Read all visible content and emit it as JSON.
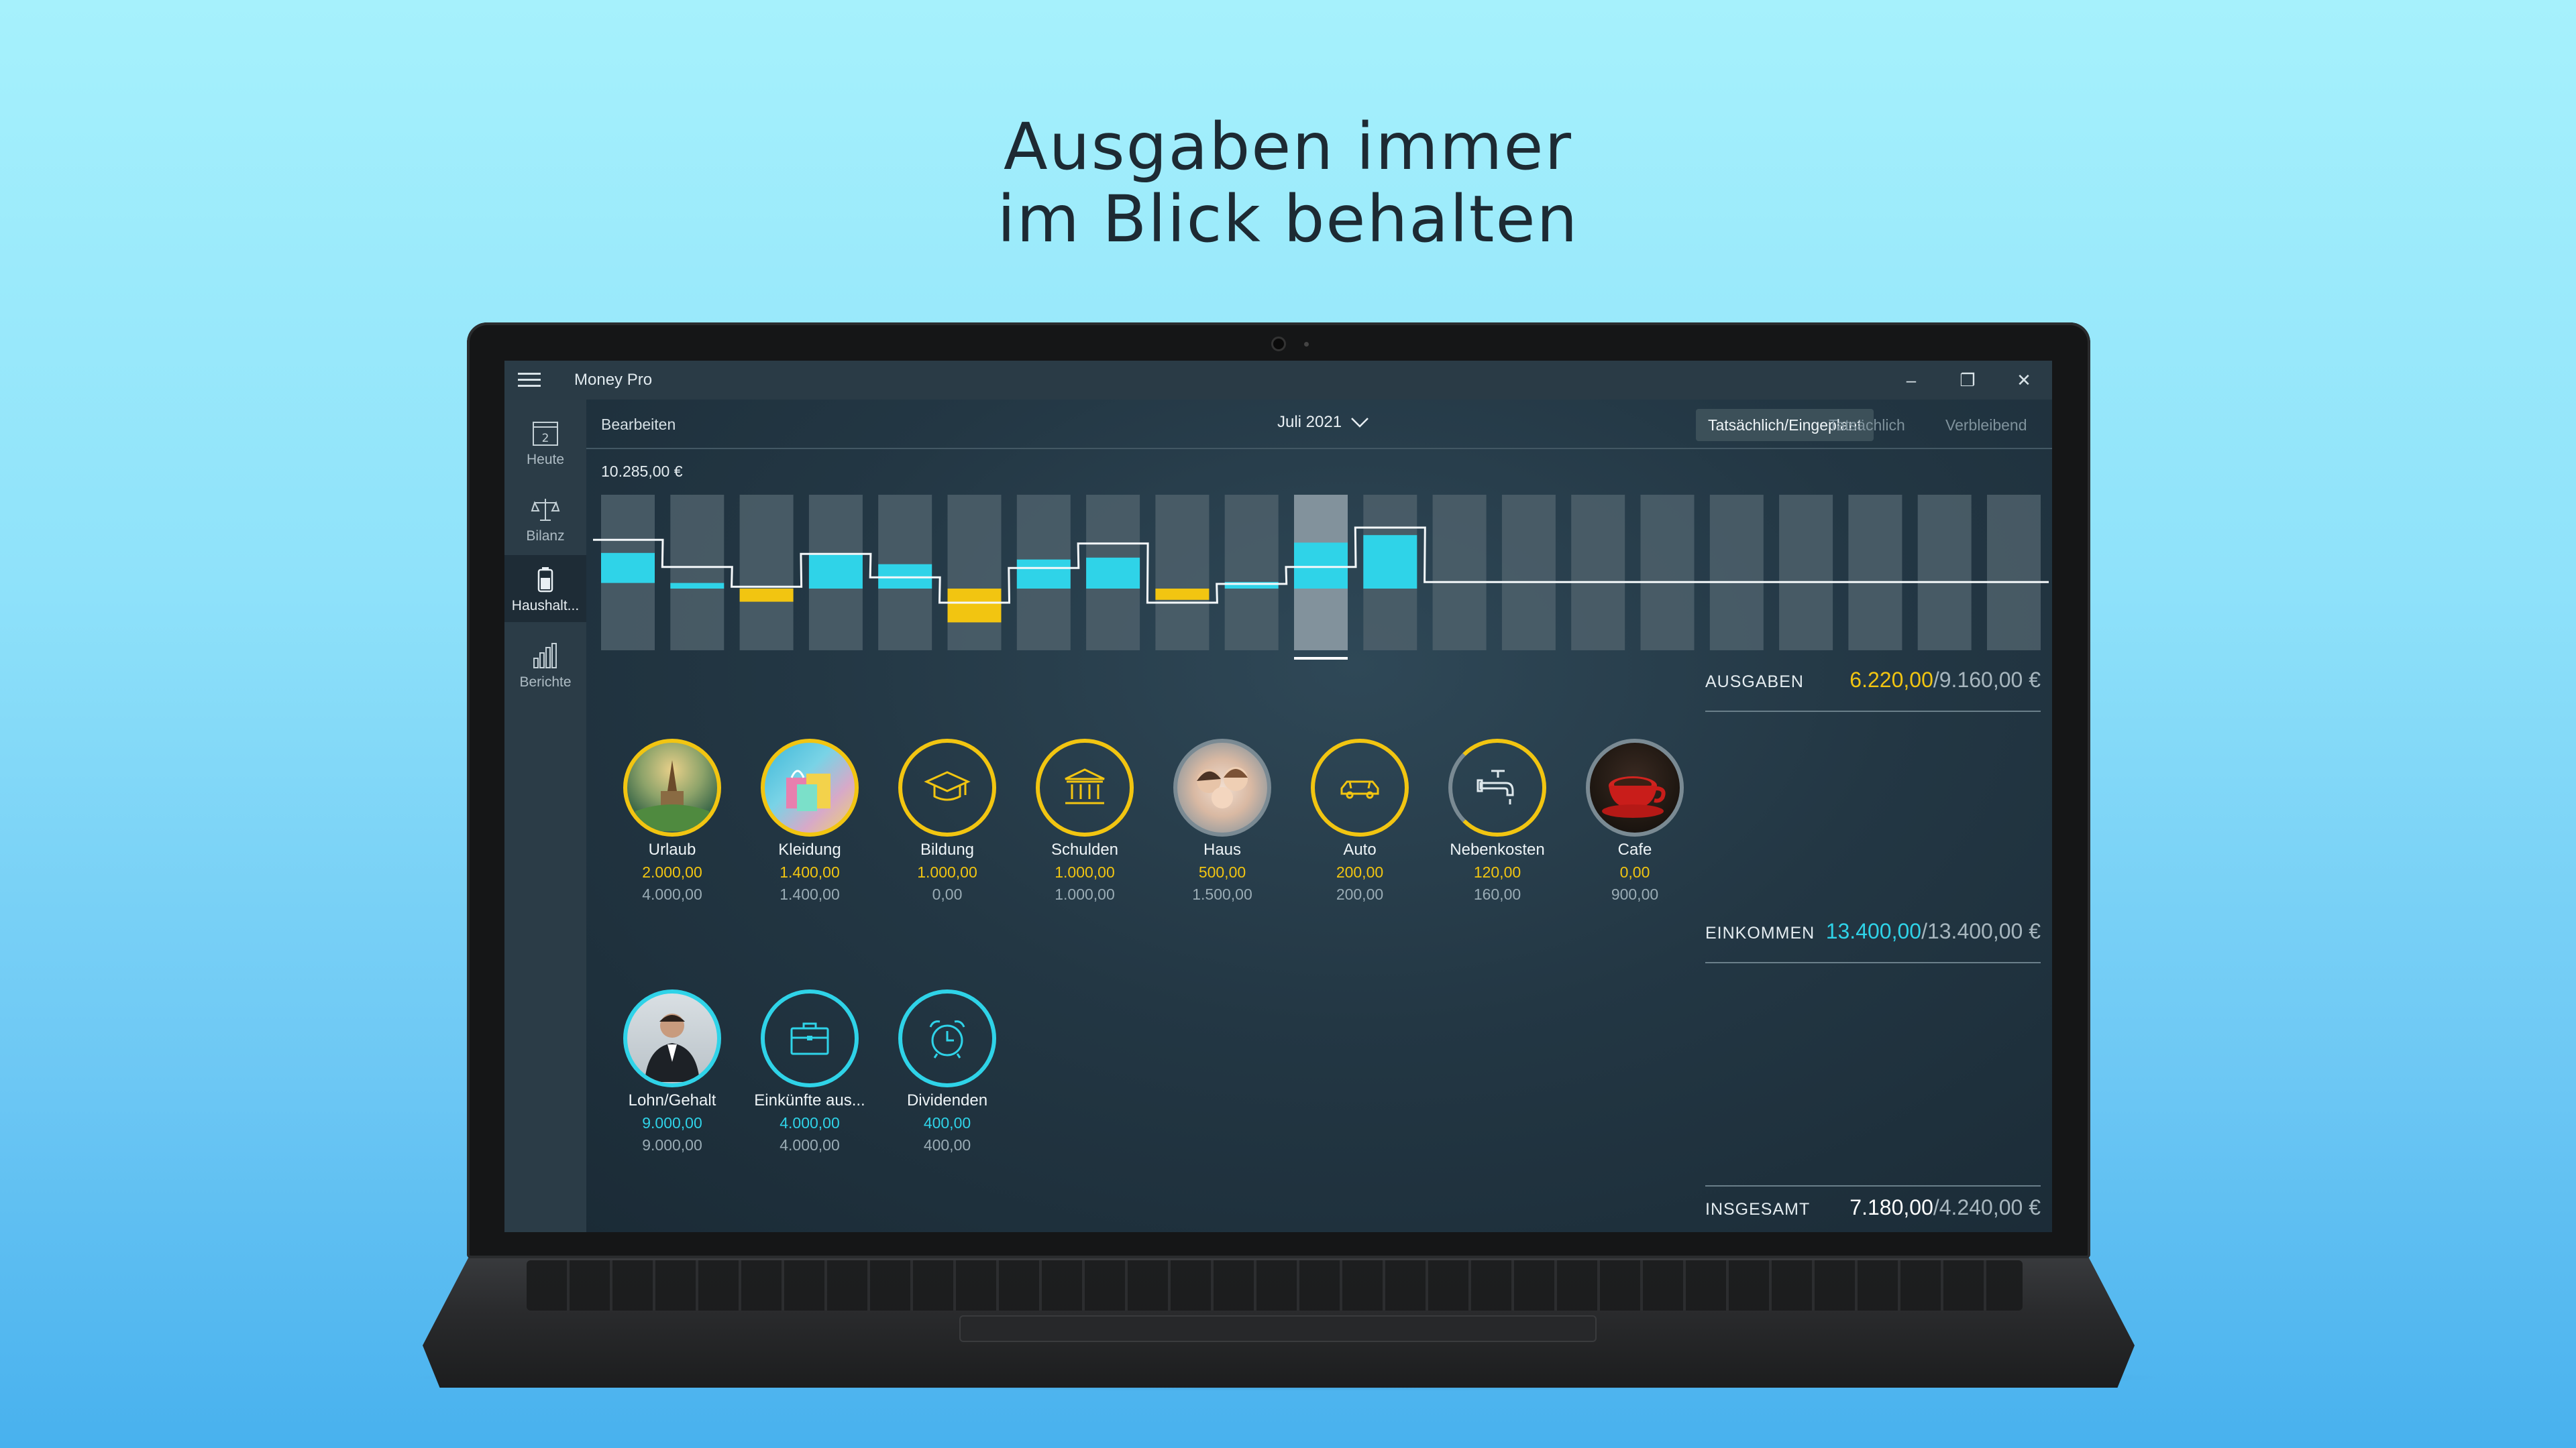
{
  "headline": {
    "line1": "Ausgaben immer",
    "line2": "im Blick behalten"
  },
  "window": {
    "title": "Money Pro",
    "minimize": "–",
    "restore": "❐",
    "close": "✕"
  },
  "sidebar": {
    "items": [
      {
        "label": "Heute",
        "icon": "calendar-icon",
        "day": "2"
      },
      {
        "label": "Bilanz",
        "icon": "scale-icon"
      },
      {
        "label": "Haushalt...",
        "icon": "battery-icon"
      },
      {
        "label": "Berichte",
        "icon": "bar-chart-icon"
      }
    ]
  },
  "toolbar": {
    "edit_label": "Bearbeiten",
    "month": "Juli 2021",
    "segments": [
      "Tatsächlich/Eingeplant",
      "Tatsächlich",
      "Verbleibend"
    ],
    "active_segment": "Tatsächlich/Eingeplant"
  },
  "chart_data": {
    "type": "bar",
    "top_label": "10.285,00 €",
    "selected_index": 10,
    "columns": 21,
    "bars": [
      {
        "color": "#2fd3e8",
        "from": 0.62,
        "to": 0.94
      },
      {
        "color": "#2fd3e8",
        "from": 0.94,
        "to": 1.0
      },
      {
        "color": "#f2c511",
        "from": 1.0,
        "to": 1.14
      },
      {
        "color": "#2fd3e8",
        "from": 0.64,
        "to": 1.0
      },
      {
        "color": "#2fd3e8",
        "from": 0.74,
        "to": 1.0
      },
      {
        "color": "#f2c511",
        "from": 1.0,
        "to": 1.36
      },
      {
        "color": "#2fd3e8",
        "from": 0.69,
        "to": 1.0
      },
      {
        "color": "#2fd3e8",
        "from": 0.67,
        "to": 1.0
      },
      {
        "color": "#f2c511",
        "from": 1.0,
        "to": 1.12
      },
      {
        "color": "#2fd3e8",
        "from": 0.93,
        "to": 1.0
      },
      {
        "color": "#2fd3e8",
        "from": 0.51,
        "to": 1.0
      },
      {
        "color": "#2fd3e8",
        "from": 0.43,
        "to": 1.0
      }
    ],
    "planned_line": [
      0.48,
      0.77,
      0.98,
      0.63,
      0.88,
      1.15,
      0.78,
      0.52,
      1.15,
      0.95,
      0.77,
      0.35,
      0.93,
      0.93,
      0.93,
      0.93,
      0.93,
      0.93,
      0.93,
      0.93,
      0.93
    ]
  },
  "summary": {
    "expenses": {
      "label": "AUSGABEN",
      "actual": "6.220,00",
      "planned": "/9.160,00 €",
      "color": "#f2c511"
    },
    "income": {
      "label": "EINKOMMEN",
      "actual": "13.400,00",
      "planned": "/13.400,00 €",
      "color": "#2fd3e8"
    },
    "total": {
      "label": "INSGESAMT",
      "actual": "7.180,00",
      "planned": "/4.240,00 €",
      "color": "#ffffff"
    }
  },
  "expense_categories": [
    {
      "name": "Urlaub",
      "actual": "2.000,00",
      "planned": "4.000,00",
      "icon": "vacation-photo-icon"
    },
    {
      "name": "Kleidung",
      "actual": "1.400,00",
      "planned": "1.400,00",
      "icon": "shopping-bags-photo-icon"
    },
    {
      "name": "Bildung",
      "actual": "1.000,00",
      "planned": "0,00",
      "icon": "graduation-cap-icon"
    },
    {
      "name": "Schulden",
      "actual": "1.000,00",
      "planned": "1.000,00",
      "icon": "bank-icon"
    },
    {
      "name": "Haus",
      "actual": "500,00",
      "planned": "1.500,00",
      "icon": "family-photo-icon"
    },
    {
      "name": "Auto",
      "actual": "200,00",
      "planned": "200,00",
      "icon": "car-icon"
    },
    {
      "name": "Nebenkosten",
      "actual": "120,00",
      "planned": "160,00",
      "icon": "water-tap-icon"
    },
    {
      "name": "Cafe",
      "actual": "0,00",
      "planned": "900,00",
      "icon": "coffee-cup-photo-icon"
    }
  ],
  "income_categories": [
    {
      "name": "Lohn/Gehalt",
      "actual": "9.000,00",
      "planned": "9.000,00",
      "icon": "businessman-photo-icon"
    },
    {
      "name": "Einkünfte aus...",
      "actual": "4.000,00",
      "planned": "4.000,00",
      "icon": "briefcase-icon"
    },
    {
      "name": "Dividenden",
      "actual": "400,00",
      "planned": "400,00",
      "icon": "alarm-clock-icon"
    }
  ]
}
